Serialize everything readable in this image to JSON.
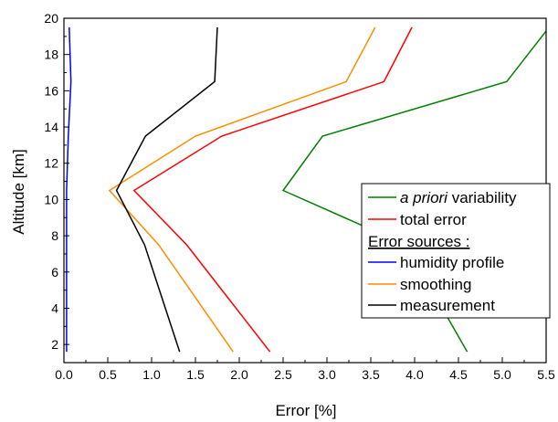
{
  "chart_data": {
    "type": "line",
    "xlabel": "Error [%]",
    "ylabel": "Altitude [km]",
    "xlim": [
      0.0,
      5.5
    ],
    "ylim": [
      1,
      20
    ],
    "xticks": [
      0.0,
      0.5,
      1.0,
      1.5,
      2.0,
      2.5,
      3.0,
      3.5,
      4.0,
      4.5,
      5.0,
      5.5
    ],
    "xtick_labels": [
      "0.0",
      "0.5",
      "1.0",
      "1.5",
      "2.0",
      "2.5",
      "3.0",
      "3.5",
      "4.0",
      "4.5",
      "5.0",
      "5.5"
    ],
    "yticks": [
      2,
      4,
      6,
      8,
      10,
      12,
      14,
      16,
      18,
      20
    ],
    "ytick_labels": [
      "2",
      "4",
      "6",
      "8",
      "10",
      "12",
      "14",
      "16",
      "18",
      "20"
    ],
    "grid": false,
    "legend_position": "right",
    "series": [
      {
        "name_prefix": "a priori",
        "name_suffix": " variability",
        "color": "#008000",
        "x": [
          4.6,
          3.9,
          2.5,
          2.95,
          5.05,
          5.5
        ],
        "y": [
          1.6,
          7.5,
          10.5,
          13.5,
          16.5,
          19.3
        ]
      },
      {
        "name": "total error",
        "color": "#ff0000",
        "x": [
          2.35,
          1.4,
          0.8,
          1.8,
          3.65,
          3.97
        ],
        "y": [
          1.6,
          7.5,
          10.5,
          13.5,
          16.5,
          19.5
        ]
      },
      {
        "name": "humidity profile",
        "color": "#0000ff",
        "x": [
          0.03,
          0.03,
          0.03,
          0.05,
          0.08,
          0.06
        ],
        "y": [
          1.6,
          7.5,
          10.5,
          13.5,
          16.5,
          19.5
        ]
      },
      {
        "name": "smoothing",
        "color": "#ff8c00",
        "x": [
          1.93,
          1.08,
          0.52,
          1.5,
          3.22,
          3.55
        ],
        "y": [
          1.6,
          7.5,
          10.5,
          13.5,
          16.5,
          19.5
        ]
      },
      {
        "name": "measurement",
        "color": "#000000",
        "x": [
          1.32,
          0.92,
          0.6,
          0.93,
          1.72,
          1.75
        ],
        "y": [
          1.6,
          7.5,
          10.5,
          13.5,
          16.5,
          19.5
        ]
      }
    ],
    "legend_heading": "Error sources :"
  }
}
